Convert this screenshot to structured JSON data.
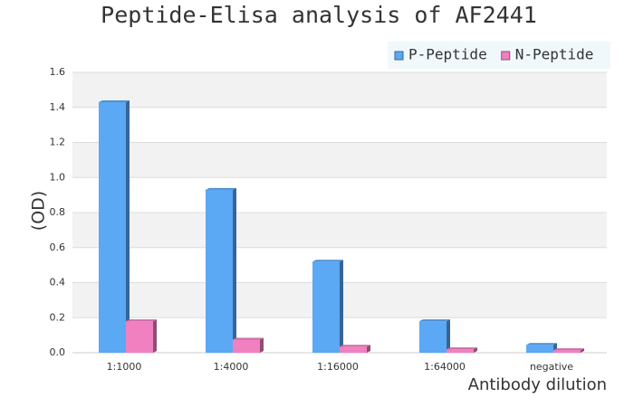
{
  "chart_data": {
    "type": "bar",
    "title": "Peptide-Elisa analysis of AF2441",
    "x_label": "Antibody dilution",
    "y_label": "(OD)",
    "categories": [
      "1:1000",
      "1:4000",
      "1:16000",
      "1:64000",
      "negative"
    ],
    "series": [
      {
        "name": "P-Peptide",
        "color": "#5ba8f5",
        "values": [
          1.43,
          0.93,
          0.52,
          0.18,
          0.045
        ]
      },
      {
        "name": "N-Peptide",
        "color": "#f080c0",
        "values": [
          0.18,
          0.075,
          0.035,
          0.02,
          0.015
        ]
      }
    ],
    "ylim": [
      0,
      1.6
    ],
    "yticks": [
      {
        "value": 0,
        "label": "0.0"
      },
      0.2,
      0.4,
      0.6,
      0.8,
      {
        "value": 1,
        "label": "1.0"
      },
      1.2,
      1.4,
      1.6
    ],
    "grid": true,
    "legend": "top-right"
  }
}
